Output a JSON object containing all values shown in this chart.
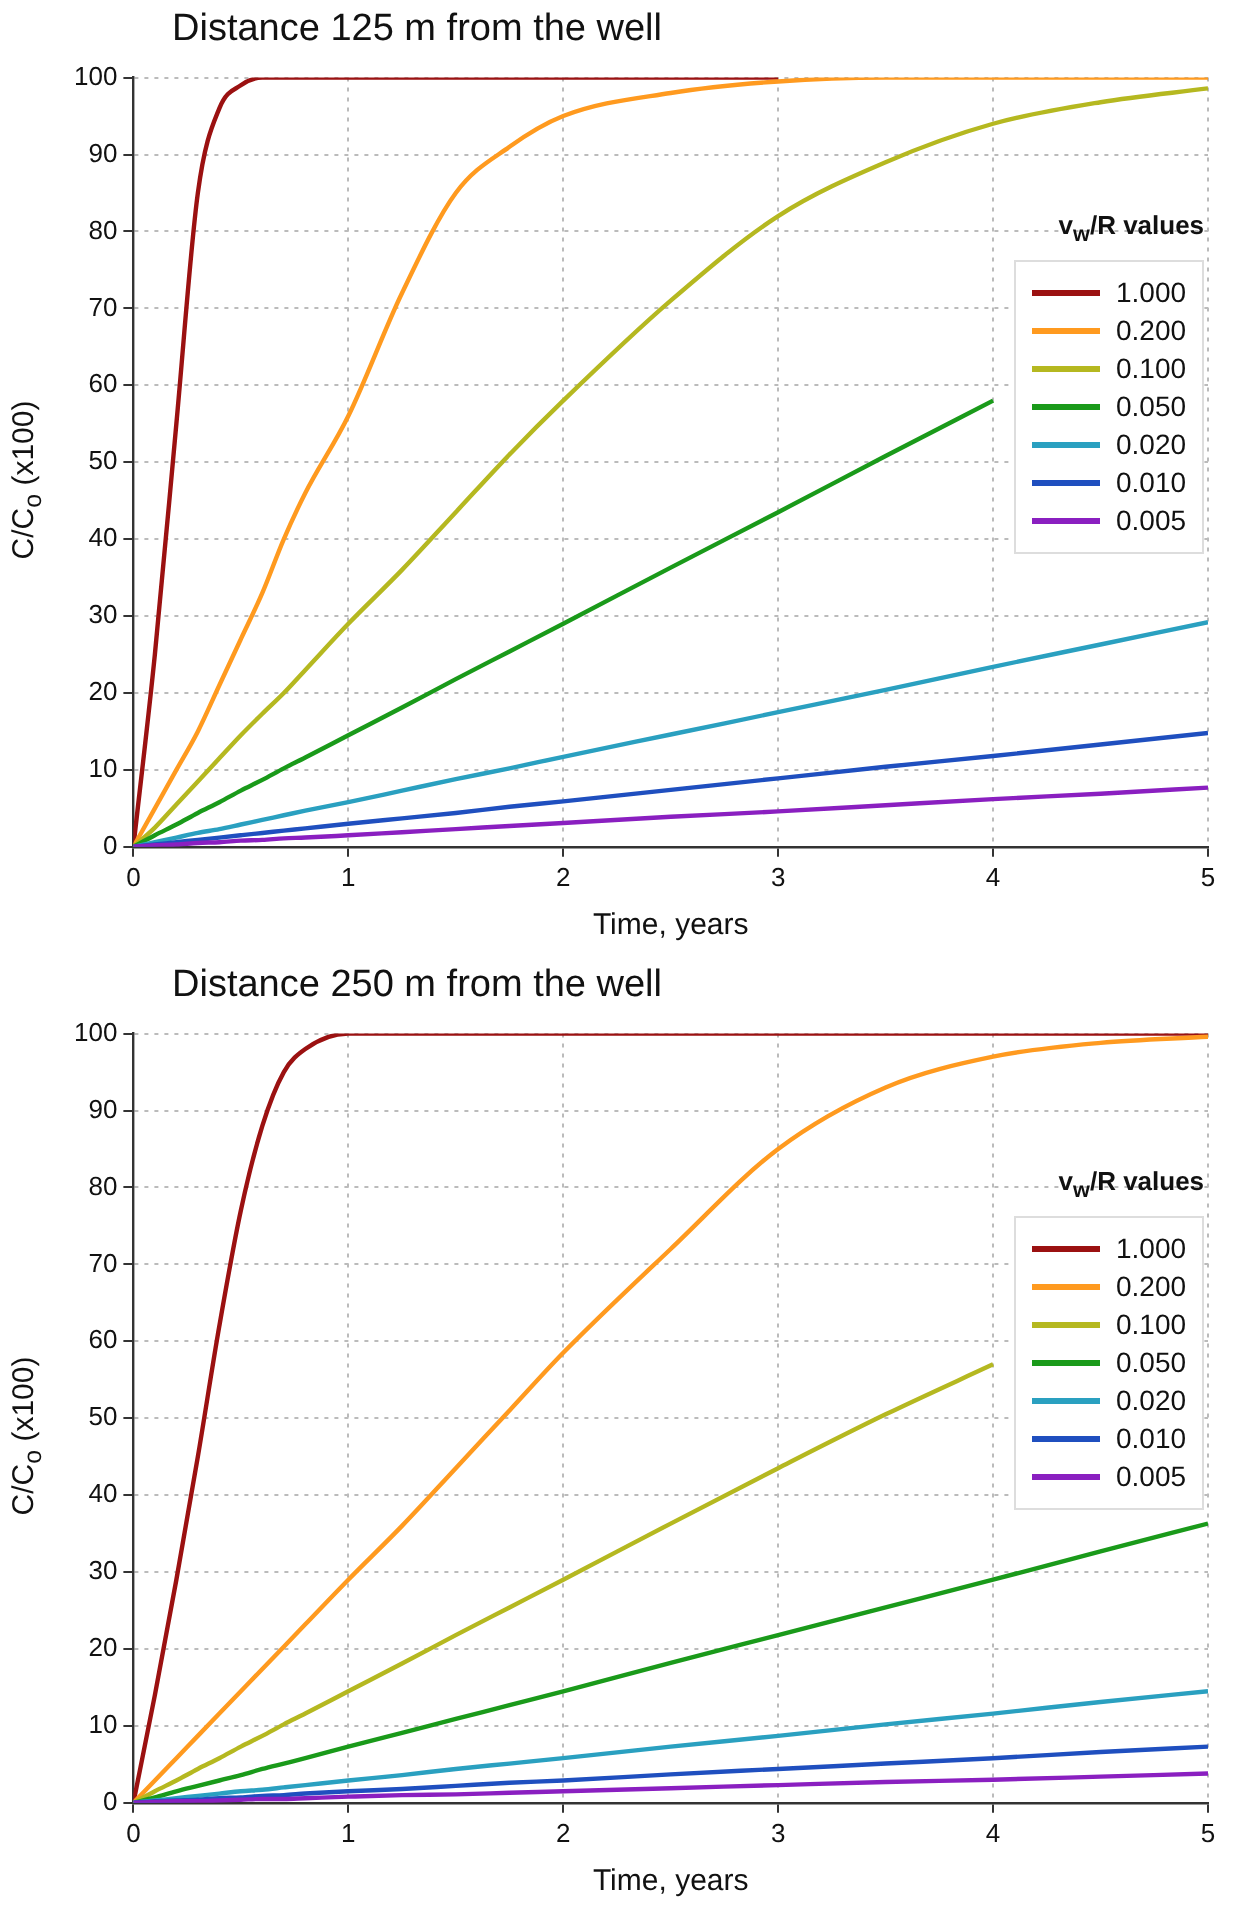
{
  "chart_data": [
    {
      "type": "line",
      "title": "Distance 125 m from the well",
      "xlabel": "Time, years",
      "ylabel": "C/C$_{o}$ (x100)",
      "legend_title": "v$_{w}$/R values",
      "x": [
        0,
        0.1,
        0.2,
        0.3,
        0.4,
        0.5,
        0.6,
        0.7,
        0.8,
        1,
        1.25,
        1.5,
        1.75,
        2,
        2.5,
        3,
        3.5,
        4,
        4.5,
        5
      ],
      "xlim": [
        0,
        5
      ],
      "xticks": [
        0,
        1,
        2,
        3,
        4,
        5
      ],
      "ylim": [
        0,
        100
      ],
      "yticks": [
        0,
        10,
        20,
        30,
        40,
        50,
        60,
        70,
        80,
        90,
        100
      ],
      "grid": true,
      "legend": "right",
      "marker": "none",
      "line_style": "solid",
      "series": [
        {
          "name": "1.000",
          "color": "#9b1111",
          "values": [
            0,
            25,
            55,
            85,
            96,
            99,
            100,
            100,
            100,
            100,
            100,
            100,
            100,
            100,
            100,
            100,
            null,
            null,
            null,
            null
          ]
        },
        {
          "name": "0.200",
          "color": "#ff9a1f",
          "values": [
            0,
            5,
            10,
            15,
            21,
            27,
            33,
            40,
            46,
            56,
            72,
            85,
            91,
            95,
            98,
            99.5,
            100,
            100,
            100,
            100
          ]
        },
        {
          "name": "0.100",
          "color": "#b5b820",
          "values": [
            0,
            2.5,
            5.5,
            8.5,
            11.5,
            14.5,
            17.3,
            20,
            23,
            29,
            36,
            43.5,
            51,
            58,
            71,
            82,
            89,
            94,
            96.8,
            98.6
          ]
        },
        {
          "name": "0.050",
          "color": "#1a9a1a",
          "values": [
            0,
            1.5,
            2.9,
            4.4,
            5.8,
            7.3,
            8.7,
            10.2,
            11.6,
            14.5,
            18.1,
            21.8,
            25.4,
            29,
            36.3,
            43.5,
            50.8,
            58,
            null,
            null
          ]
        },
        {
          "name": "0.020",
          "color": "#2aa0c0",
          "values": [
            0,
            0.6,
            1.2,
            1.8,
            2.3,
            2.9,
            3.5,
            4.1,
            4.7,
            5.8,
            7.3,
            8.8,
            10.2,
            11.7,
            14.6,
            17.5,
            20.4,
            23.4,
            26.3,
            29.2
          ]
        },
        {
          "name": "0.010",
          "color": "#1f4fbf",
          "values": [
            0,
            0.3,
            0.6,
            0.9,
            1.2,
            1.5,
            1.8,
            2.1,
            2.4,
            3,
            3.7,
            4.4,
            5.2,
            5.9,
            7.4,
            8.9,
            10.4,
            11.8,
            13.3,
            14.8
          ]
        },
        {
          "name": "0.005",
          "color": "#8a1fc0",
          "values": [
            0,
            0.2,
            0.3,
            0.5,
            0.6,
            0.8,
            0.9,
            1.1,
            1.2,
            1.5,
            1.9,
            2.3,
            2.7,
            3.1,
            3.9,
            4.6,
            5.4,
            6.2,
            6.9,
            7.7
          ]
        }
      ]
    },
    {
      "type": "line",
      "title": "Distance 250 m from the well",
      "xlabel": "Time, years",
      "ylabel": "C/C$_{o}$ (x100)",
      "legend_title": "v$_{w}$/R values",
      "x": [
        0,
        0.1,
        0.2,
        0.3,
        0.4,
        0.5,
        0.6,
        0.7,
        0.8,
        1,
        1.25,
        1.5,
        1.75,
        2,
        2.5,
        3,
        3.5,
        4,
        4.5,
        5
      ],
      "xlim": [
        0,
        5
      ],
      "xticks": [
        0,
        1,
        2,
        3,
        4,
        5
      ],
      "ylim": [
        0,
        100
      ],
      "yticks": [
        0,
        10,
        20,
        30,
        40,
        50,
        60,
        70,
        80,
        90,
        100
      ],
      "grid": true,
      "legend": "right",
      "marker": "none",
      "line_style": "solid",
      "series": [
        {
          "name": "1.000",
          "color": "#9b1111",
          "values": [
            0,
            14,
            29,
            45,
            62,
            77,
            88,
            95,
            98,
            100,
            100,
            100,
            100,
            100,
            100,
            100,
            100,
            100,
            100,
            100
          ]
        },
        {
          "name": "0.200",
          "color": "#ff9a1f",
          "values": [
            0,
            2.9,
            5.8,
            8.7,
            11.6,
            14.5,
            17.4,
            20.3,
            23.2,
            29,
            36,
            43.5,
            51,
            58.5,
            72,
            85,
            93,
            97,
            98.8,
            99.6
          ]
        },
        {
          "name": "0.100",
          "color": "#b5b820",
          "values": [
            0,
            1.5,
            2.9,
            4.4,
            5.8,
            7.3,
            8.7,
            10.2,
            11.6,
            14.5,
            18.1,
            21.8,
            25.4,
            29,
            36.3,
            43.5,
            50.5,
            57,
            null,
            null
          ]
        },
        {
          "name": "0.050",
          "color": "#1a9a1a",
          "values": [
            0,
            0.7,
            1.5,
            2.2,
            2.9,
            3.6,
            4.4,
            5.1,
            5.8,
            7.3,
            9.1,
            10.9,
            12.7,
            14.5,
            18.2,
            21.8,
            25.4,
            29,
            32.7,
            36.3
          ]
        },
        {
          "name": "0.020",
          "color": "#2aa0c0",
          "values": [
            0,
            0.3,
            0.6,
            0.9,
            1.2,
            1.5,
            1.7,
            2,
            2.3,
            2.9,
            3.6,
            4.4,
            5.1,
            5.8,
            7.3,
            8.7,
            10.2,
            11.6,
            13.1,
            14.5
          ]
        },
        {
          "name": "0.010",
          "color": "#1f4fbf",
          "values": [
            0,
            0.2,
            0.3,
            0.4,
            0.6,
            0.7,
            0.9,
            1,
            1.2,
            1.5,
            1.8,
            2.2,
            2.6,
            2.9,
            3.7,
            4.4,
            5.1,
            5.8,
            6.6,
            7.3
          ]
        },
        {
          "name": "0.005",
          "color": "#8a1fc0",
          "values": [
            0,
            0.1,
            0.2,
            0.2,
            0.3,
            0.4,
            0.5,
            0.5,
            0.6,
            0.8,
            1,
            1.1,
            1.3,
            1.5,
            1.9,
            2.3,
            2.7,
            3,
            3.4,
            3.8
          ]
        }
      ]
    }
  ]
}
